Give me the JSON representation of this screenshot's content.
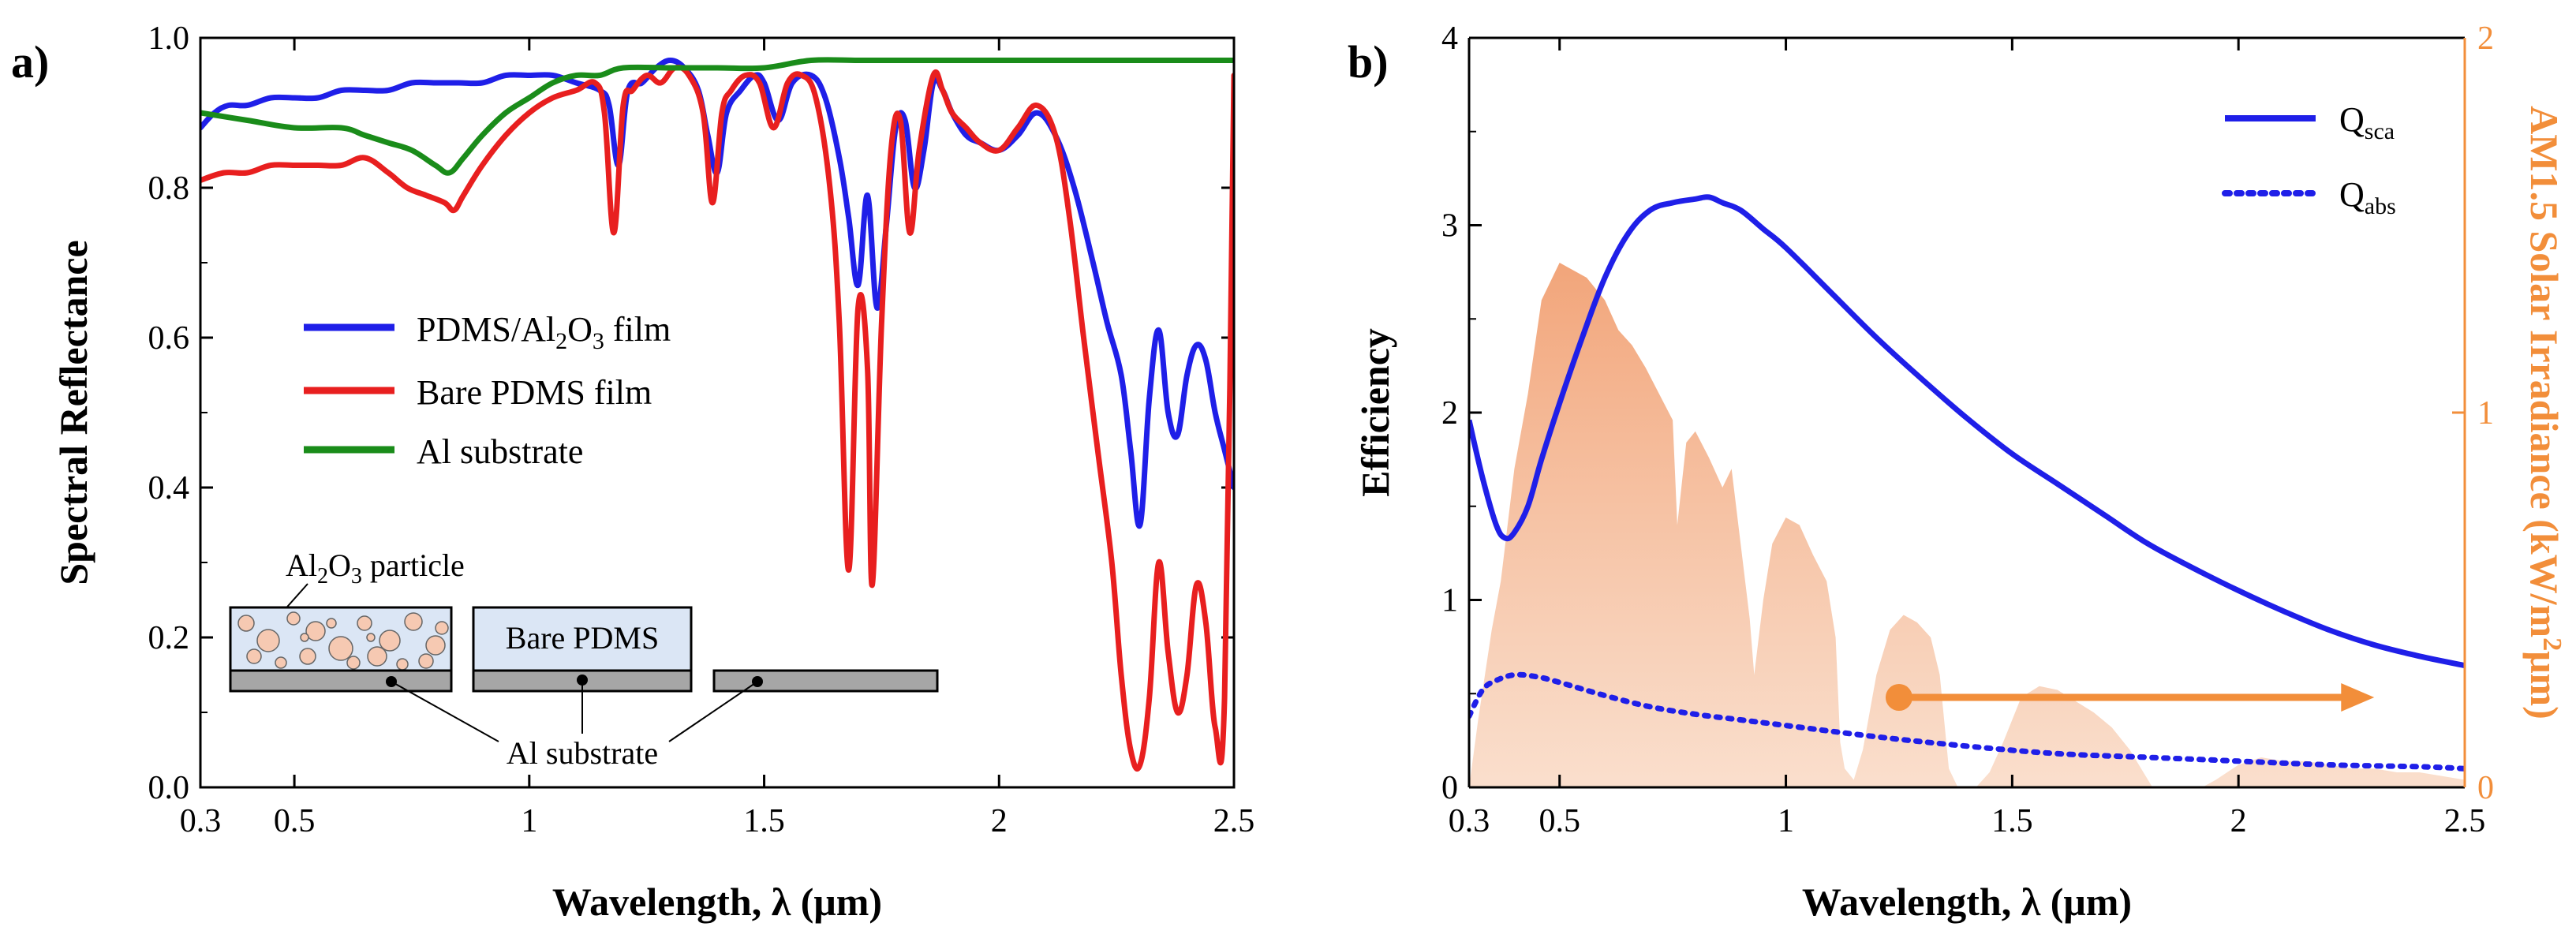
{
  "chart_data": [
    {
      "panel": "a)",
      "type": "line",
      "xlabel": "Wavelength, λ (μm)",
      "ylabel": "Spectral Reflectance",
      "xlim": [
        0.3,
        2.5
      ],
      "ylim": [
        0.0,
        1.0
      ],
      "x_ticks": [
        "0.3",
        "0.5",
        "1",
        "1.5",
        "2",
        "2.5"
      ],
      "x_tick_values": [
        0.3,
        0.5,
        1,
        1.5,
        2,
        2.5
      ],
      "y_ticks": [
        "0.0",
        "0.2",
        "0.4",
        "0.6",
        "0.8",
        "1.0"
      ],
      "y_tick_values": [
        0,
        0.2,
        0.4,
        0.6,
        0.8,
        1.0
      ],
      "legend": [
        {
          "label": "PDMS/Al2O3 film",
          "main": "PDMS/Al",
          "sub1": "2",
          "mid": "O",
          "sub2": "3",
          "tail": " film",
          "color": "#1f1fe8"
        },
        {
          "label": "Bare PDMS film",
          "main": "Bare PDMS film",
          "color": "#e81f1f"
        },
        {
          "label": "Al substrate",
          "main": "Al substrate",
          "color": "#1a8c1a"
        }
      ],
      "inset": {
        "particle_label": "Al2O3 particle",
        "particle_main": "Al",
        "particle_sub1": "2",
        "particle_mid": "O",
        "particle_sub2": "3",
        "particle_tail": " particle",
        "bare_label": "Bare PDMS",
        "substrate_label": "Al substrate"
      },
      "series": [
        {
          "name": "PDMS/Al2O3 film",
          "color": "#1f1fe8",
          "x": [
            0.3,
            0.33,
            0.36,
            0.4,
            0.45,
            0.5,
            0.55,
            0.6,
            0.65,
            0.7,
            0.75,
            0.8,
            0.85,
            0.9,
            0.95,
            1.0,
            1.05,
            1.1,
            1.15,
            1.17,
            1.19,
            1.21,
            1.24,
            1.27,
            1.3,
            1.33,
            1.36,
            1.38,
            1.4,
            1.42,
            1.45,
            1.48,
            1.5,
            1.53,
            1.56,
            1.6,
            1.63,
            1.66,
            1.68,
            1.7,
            1.72,
            1.74,
            1.76,
            1.78,
            1.8,
            1.82,
            1.84,
            1.86,
            1.88,
            1.9,
            1.93,
            1.96,
            2.0,
            2.04,
            2.08,
            2.12,
            2.16,
            2.2,
            2.23,
            2.26,
            2.28,
            2.3,
            2.32,
            2.34,
            2.36,
            2.38,
            2.4,
            2.42,
            2.44,
            2.46,
            2.48,
            2.5
          ],
          "values": [
            0.88,
            0.9,
            0.91,
            0.91,
            0.92,
            0.92,
            0.92,
            0.93,
            0.93,
            0.93,
            0.94,
            0.94,
            0.94,
            0.94,
            0.95,
            0.95,
            0.95,
            0.94,
            0.93,
            0.91,
            0.83,
            0.93,
            0.94,
            0.96,
            0.97,
            0.96,
            0.93,
            0.87,
            0.82,
            0.9,
            0.93,
            0.95,
            0.94,
            0.89,
            0.94,
            0.95,
            0.92,
            0.84,
            0.76,
            0.67,
            0.79,
            0.64,
            0.75,
            0.88,
            0.89,
            0.8,
            0.85,
            0.94,
            0.93,
            0.9,
            0.87,
            0.86,
            0.85,
            0.87,
            0.9,
            0.87,
            0.8,
            0.7,
            0.62,
            0.55,
            0.45,
            0.35,
            0.52,
            0.61,
            0.5,
            0.47,
            0.55,
            0.59,
            0.57,
            0.5,
            0.45,
            0.4
          ]
        },
        {
          "name": "Bare PDMS film",
          "color": "#e81f1f",
          "x": [
            0.3,
            0.35,
            0.4,
            0.45,
            0.5,
            0.55,
            0.6,
            0.65,
            0.7,
            0.74,
            0.78,
            0.82,
            0.84,
            0.86,
            0.9,
            0.95,
            1.0,
            1.05,
            1.1,
            1.14,
            1.16,
            1.18,
            1.2,
            1.22,
            1.25,
            1.28,
            1.31,
            1.34,
            1.37,
            1.39,
            1.41,
            1.43,
            1.46,
            1.49,
            1.52,
            1.55,
            1.58,
            1.61,
            1.64,
            1.66,
            1.68,
            1.7,
            1.72,
            1.73,
            1.75,
            1.77,
            1.79,
            1.81,
            1.83,
            1.86,
            1.88,
            1.9,
            1.93,
            1.96,
            2.0,
            2.04,
            2.08,
            2.12,
            2.15,
            2.18,
            2.21,
            2.24,
            2.26,
            2.28,
            2.3,
            2.32,
            2.34,
            2.36,
            2.38,
            2.4,
            2.42,
            2.44,
            2.46,
            2.48,
            2.5
          ],
          "values": [
            0.81,
            0.82,
            0.82,
            0.83,
            0.83,
            0.83,
            0.83,
            0.84,
            0.82,
            0.8,
            0.79,
            0.78,
            0.77,
            0.79,
            0.83,
            0.87,
            0.9,
            0.92,
            0.93,
            0.94,
            0.9,
            0.74,
            0.91,
            0.93,
            0.95,
            0.94,
            0.96,
            0.95,
            0.9,
            0.78,
            0.9,
            0.93,
            0.95,
            0.94,
            0.88,
            0.94,
            0.95,
            0.92,
            0.8,
            0.62,
            0.29,
            0.64,
            0.56,
            0.27,
            0.62,
            0.85,
            0.89,
            0.74,
            0.85,
            0.95,
            0.93,
            0.9,
            0.88,
            0.86,
            0.85,
            0.88,
            0.91,
            0.87,
            0.76,
            0.6,
            0.45,
            0.3,
            0.15,
            0.05,
            0.03,
            0.12,
            0.3,
            0.18,
            0.1,
            0.15,
            0.27,
            0.22,
            0.08,
            0.12,
            0.95
          ]
        },
        {
          "name": "Al substrate",
          "color": "#1a8c1a",
          "x": [
            0.3,
            0.4,
            0.5,
            0.6,
            0.65,
            0.7,
            0.75,
            0.8,
            0.83,
            0.86,
            0.9,
            0.95,
            1.0,
            1.05,
            1.1,
            1.15,
            1.2,
            1.3,
            1.4,
            1.5,
            1.6,
            1.7,
            1.8,
            1.9,
            2.0,
            2.1,
            2.2,
            2.3,
            2.4,
            2.5
          ],
          "values": [
            0.9,
            0.89,
            0.88,
            0.88,
            0.87,
            0.86,
            0.85,
            0.83,
            0.82,
            0.84,
            0.87,
            0.9,
            0.92,
            0.94,
            0.95,
            0.95,
            0.96,
            0.96,
            0.96,
            0.96,
            0.97,
            0.97,
            0.97,
            0.97,
            0.97,
            0.97,
            0.97,
            0.97,
            0.97,
            0.97
          ]
        }
      ]
    },
    {
      "panel": "b)",
      "type": "line",
      "xlabel": "Wavelength, λ (μm)",
      "ylabel": "Efficiency",
      "ylabel_right": "AM1.5 Solar Irradiance (kW/m2μm)",
      "ylabel_right_main": "AM1.5 Solar Irradiance (kW/m",
      "ylabel_right_sup": "2",
      "ylabel_right_tail": "μm)",
      "xlim": [
        0.3,
        2.5
      ],
      "ylim": [
        0,
        4
      ],
      "ylim_right": [
        0,
        2
      ],
      "x_ticks": [
        "0.3",
        "0.5",
        "1",
        "1.5",
        "2",
        "2.5"
      ],
      "x_tick_values": [
        0.3,
        0.5,
        1,
        1.5,
        2,
        2.5
      ],
      "y_ticks": [
        "0",
        "1",
        "2",
        "3",
        "4"
      ],
      "y_tick_values": [
        0,
        1,
        2,
        3,
        4
      ],
      "y_ticks_right": [
        "0",
        "1",
        "2"
      ],
      "y_tick_values_right": [
        0,
        1,
        2
      ],
      "legend": [
        {
          "label": "Qsca",
          "main": "Q",
          "sub": "sca",
          "style": "solid",
          "color": "#1f1fe8"
        },
        {
          "label": "Qabs",
          "main": "Q",
          "sub": "abs",
          "style": "dotted",
          "color": "#1f1fe8"
        }
      ],
      "arrow": {
        "x_start": 1.25,
        "x_end": 2.3,
        "y_right": 0.24,
        "color": "#f28e3a"
      },
      "series": [
        {
          "name": "Qsca",
          "axis": "left",
          "color": "#1f1fe8",
          "x": [
            0.3,
            0.33,
            0.36,
            0.38,
            0.4,
            0.43,
            0.46,
            0.5,
            0.55,
            0.6,
            0.65,
            0.7,
            0.75,
            0.8,
            0.83,
            0.86,
            0.9,
            0.95,
            1.0,
            1.1,
            1.2,
            1.3,
            1.4,
            1.5,
            1.6,
            1.7,
            1.8,
            1.9,
            2.0,
            2.1,
            2.2,
            2.3,
            2.4,
            2.5
          ],
          "values": [
            1.96,
            1.65,
            1.4,
            1.33,
            1.36,
            1.5,
            1.75,
            2.05,
            2.4,
            2.72,
            2.95,
            3.08,
            3.12,
            3.14,
            3.15,
            3.12,
            3.08,
            2.98,
            2.88,
            2.64,
            2.4,
            2.18,
            1.97,
            1.78,
            1.62,
            1.46,
            1.3,
            1.17,
            1.05,
            0.94,
            0.84,
            0.76,
            0.7,
            0.65
          ]
        },
        {
          "name": "Qabs",
          "axis": "left",
          "color": "#1f1fe8",
          "x": [
            0.3,
            0.33,
            0.36,
            0.4,
            0.45,
            0.5,
            0.6,
            0.7,
            0.8,
            0.9,
            1.0,
            1.2,
            1.4,
            1.6,
            1.8,
            2.0,
            2.2,
            2.4,
            2.5
          ],
          "values": [
            0.38,
            0.52,
            0.57,
            0.6,
            0.59,
            0.56,
            0.49,
            0.43,
            0.39,
            0.36,
            0.33,
            0.27,
            0.22,
            0.18,
            0.16,
            0.14,
            0.12,
            0.11,
            0.1
          ]
        },
        {
          "name": "AM1.5 Solar Irradiance",
          "axis": "right",
          "type": "area",
          "color": "#f2a57a",
          "x": [
            0.3,
            0.32,
            0.35,
            0.37,
            0.4,
            0.43,
            0.46,
            0.5,
            0.53,
            0.56,
            0.6,
            0.63,
            0.66,
            0.69,
            0.72,
            0.75,
            0.76,
            0.78,
            0.8,
            0.83,
            0.86,
            0.88,
            0.9,
            0.92,
            0.93,
            0.95,
            0.97,
            1.0,
            1.03,
            1.06,
            1.09,
            1.11,
            1.12,
            1.13,
            1.15,
            1.17,
            1.2,
            1.23,
            1.26,
            1.29,
            1.32,
            1.34,
            1.36,
            1.38,
            1.4,
            1.42,
            1.45,
            1.48,
            1.52,
            1.56,
            1.6,
            1.64,
            1.68,
            1.72,
            1.76,
            1.79,
            1.81,
            1.84,
            1.88,
            1.92,
            1.95,
            2.0,
            2.05,
            2.1,
            2.15,
            2.2,
            2.25,
            2.3,
            2.35,
            2.4,
            2.45,
            2.5
          ],
          "values": [
            0.0,
            0.18,
            0.42,
            0.55,
            0.85,
            1.05,
            1.3,
            1.4,
            1.38,
            1.36,
            1.3,
            1.22,
            1.18,
            1.12,
            1.05,
            0.98,
            0.7,
            0.92,
            0.95,
            0.88,
            0.8,
            0.85,
            0.65,
            0.45,
            0.3,
            0.5,
            0.65,
            0.72,
            0.7,
            0.62,
            0.55,
            0.4,
            0.12,
            0.05,
            0.02,
            0.1,
            0.3,
            0.42,
            0.46,
            0.44,
            0.4,
            0.3,
            0.05,
            0.0,
            0.0,
            0.0,
            0.04,
            0.12,
            0.24,
            0.27,
            0.26,
            0.23,
            0.2,
            0.16,
            0.1,
            0.04,
            0.0,
            0.0,
            0.0,
            0.0,
            0.02,
            0.06,
            0.08,
            0.07,
            0.07,
            0.06,
            0.05,
            0.05,
            0.04,
            0.04,
            0.03,
            0.02
          ]
        }
      ]
    }
  ]
}
